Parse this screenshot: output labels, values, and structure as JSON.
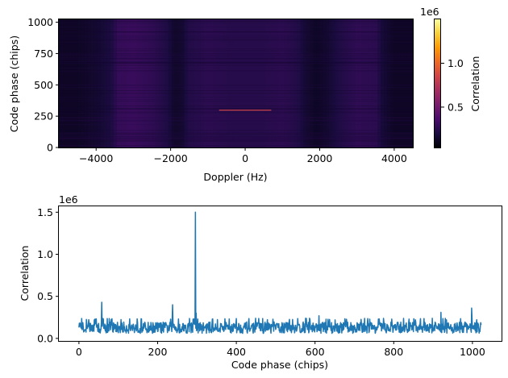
{
  "colors": {
    "line": "#1f77b4",
    "axis": "#000000",
    "colormap": [
      "#000004",
      "#1b0c41",
      "#4a0c6b",
      "#781c6d",
      "#a52c60",
      "#cf4446",
      "#ed6925",
      "#fb9b06",
      "#f7d13d",
      "#fcffa4"
    ]
  },
  "chart_data": [
    {
      "type": "heatmap",
      "xlabel": "Doppler (Hz)",
      "ylabel": "Code phase (chips)",
      "xlim": [
        -5000,
        4500
      ],
      "ylim": [
        0,
        1023
      ],
      "xticks": [
        -4000,
        -2000,
        0,
        2000,
        4000
      ],
      "xtick_labels": [
        "−4000",
        "−2000",
        "0",
        "2000",
        "4000"
      ],
      "yticks": [
        0,
        250,
        500,
        750,
        1000
      ],
      "ytick_labels": [
        "0",
        "250",
        "500",
        "750",
        "1000"
      ],
      "colorbar": {
        "label": "Correlation",
        "offset_text": "1e6",
        "range": [
          40000,
          1500000
        ],
        "ticks": [
          500000,
          1000000
        ],
        "tick_labels": [
          "0.5",
          "1.0"
        ]
      },
      "doppler_profile": [
        {
          "doppler": -5000,
          "level": 0.06
        },
        {
          "doppler": -4500,
          "level": 0.06
        },
        {
          "doppler": -4000,
          "level": 0.08
        },
        {
          "doppler": -3600,
          "level": 0.11
        },
        {
          "doppler": -3400,
          "level": 0.17
        },
        {
          "doppler": -3000,
          "level": 0.18
        },
        {
          "doppler": -2500,
          "level": 0.16
        },
        {
          "doppler": -2100,
          "level": 0.12
        },
        {
          "doppler": -1900,
          "level": 0.07
        },
        {
          "doppler": -1700,
          "level": 0.08
        },
        {
          "doppler": -1500,
          "level": 0.13
        },
        {
          "doppler": -1000,
          "level": 0.15
        },
        {
          "doppler": -500,
          "level": 0.14
        },
        {
          "doppler": 0,
          "level": 0.14
        },
        {
          "doppler": 500,
          "level": 0.14
        },
        {
          "doppler": 1000,
          "level": 0.15
        },
        {
          "doppler": 1400,
          "level": 0.13
        },
        {
          "doppler": 1600,
          "level": 0.09
        },
        {
          "doppler": 1900,
          "level": 0.06
        },
        {
          "doppler": 2200,
          "level": 0.08
        },
        {
          "doppler": 2500,
          "level": 0.12
        },
        {
          "doppler": 3000,
          "level": 0.16
        },
        {
          "doppler": 3500,
          "level": 0.15
        },
        {
          "doppler": 3700,
          "level": 0.09
        },
        {
          "doppler": 4000,
          "level": 0.06
        },
        {
          "doppler": 4500,
          "level": 0.06
        }
      ],
      "peak": {
        "doppler_from": -700,
        "doppler_to": 700,
        "code_phase": 298,
        "level": 0.55
      }
    },
    {
      "type": "line",
      "xlabel": "Code phase (chips)",
      "ylabel": "Correlation",
      "offset_text": "1e6",
      "xlim": [
        -51,
        1074
      ],
      "ylim": [
        -30000,
        1570000
      ],
      "xticks": [
        0,
        200,
        400,
        600,
        800,
        1000
      ],
      "xtick_labels": [
        "0",
        "200",
        "400",
        "600",
        "800",
        "1000"
      ],
      "yticks": [
        0,
        500000,
        1000000,
        1500000
      ],
      "ytick_labels": [
        "0.0",
        "0.5",
        "1.0",
        "1.5"
      ],
      "series": [
        {
          "noise_floor": {
            "code_phase_from": 0,
            "code_phase_to": 1022,
            "min": 60000,
            "max": 240000
          },
          "points": [
            {
              "x": 0,
              "y": 130000
            },
            {
              "x": 58,
              "y": 430000
            },
            {
              "x": 238,
              "y": 400000
            },
            {
              "x": 296,
              "y": 1500000
            },
            {
              "x": 298,
              "y": 300000
            },
            {
              "x": 610,
              "y": 270000
            },
            {
              "x": 920,
              "y": 310000
            },
            {
              "x": 998,
              "y": 360000
            },
            {
              "x": 1022,
              "y": 160000
            }
          ]
        }
      ]
    }
  ]
}
